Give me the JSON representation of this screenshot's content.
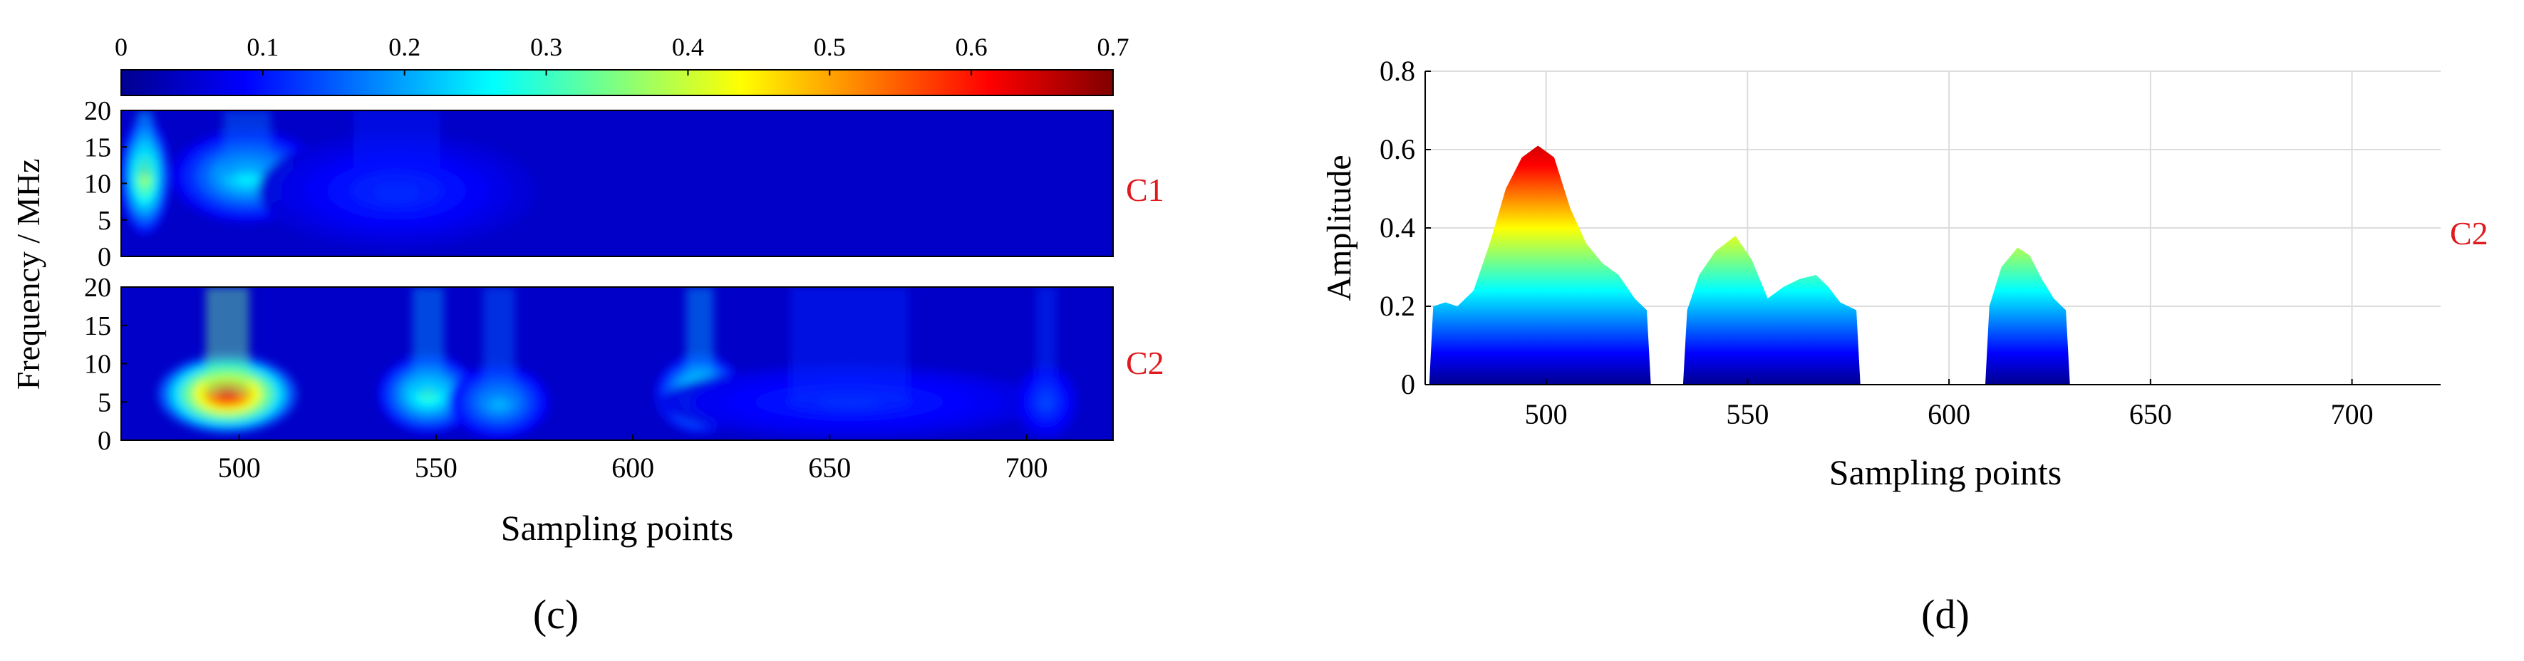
{
  "chart_data": [
    {
      "type": "heatmap",
      "panel_label": "(c)",
      "xlabel": "Sampling points",
      "ylabel": "Frequency / MHz",
      "xlim": [
        470,
        722
      ],
      "ylim": [
        0,
        20
      ],
      "x_ticks": [
        500,
        550,
        600,
        650,
        700
      ],
      "y_ticks": [
        0,
        5,
        10,
        15,
        20
      ],
      "colorbar": {
        "range": [
          0,
          0.7
        ],
        "ticks": [
          "0",
          "0.1",
          "0.2",
          "0.3",
          "0.4",
          "0.5",
          "0.6",
          "0.7"
        ],
        "colormap": "jet",
        "location": "top"
      },
      "rows": [
        {
          "name": "C1",
          "blobs": [
            {
              "x": 476,
              "f": 11,
              "sx": 4,
              "sf": 5,
              "amp": 0.38
            },
            {
              "x": 502,
              "f": 11,
              "sx": 12,
              "sf": 4,
              "amp": 0.26
            },
            {
              "x": 540,
              "f": 9,
              "sx": 22,
              "sf": 5,
              "amp": 0.12
            }
          ],
          "background": 0.05
        },
        {
          "name": "C2",
          "blobs": [
            {
              "x": 497,
              "f": 6,
              "sx": 11,
              "sf": 3.2,
              "amp": 0.62
            },
            {
              "x": 548,
              "f": 6,
              "sx": 8,
              "sf": 3.2,
              "amp": 0.3
            },
            {
              "x": 566,
              "f": 5,
              "sx": 8,
              "sf": 3,
              "amp": 0.22
            },
            {
              "x": 617,
              "f": 6,
              "sx": 7,
              "sf": 3.2,
              "amp": 0.32
            },
            {
              "x": 655,
              "f": 5,
              "sx": 30,
              "sf": 3,
              "amp": 0.12
            },
            {
              "x": 705,
              "f": 5,
              "sx": 5,
              "sf": 3,
              "amp": 0.14
            }
          ],
          "background": 0.06
        }
      ]
    },
    {
      "type": "area",
      "panel_label": "(d)",
      "series_label": "C2",
      "xlabel": "Sampling points",
      "ylabel": "Amplitude",
      "xlim": [
        470,
        722
      ],
      "ylim": [
        0,
        0.8
      ],
      "x_ticks": [
        500,
        550,
        600,
        650,
        700
      ],
      "y_ticks": [
        "0",
        "0.2",
        "0.4",
        "0.6",
        "0.8"
      ],
      "grid": true,
      "colormap": "jet",
      "segments": [
        {
          "x": [
            471,
            472,
            475,
            478,
            482,
            486,
            490,
            494,
            498,
            502,
            506,
            510,
            514,
            518,
            522,
            525,
            526
          ],
          "y": [
            0,
            0.2,
            0.21,
            0.2,
            0.24,
            0.36,
            0.5,
            0.58,
            0.61,
            0.58,
            0.45,
            0.36,
            0.31,
            0.28,
            0.22,
            0.19,
            0
          ]
        },
        {
          "x": [
            534,
            535,
            538,
            542,
            547,
            551,
            555,
            559,
            563,
            567,
            570,
            573,
            577,
            578
          ],
          "y": [
            0,
            0.19,
            0.28,
            0.34,
            0.38,
            0.32,
            0.22,
            0.25,
            0.27,
            0.28,
            0.25,
            0.21,
            0.19,
            0
          ]
        },
        {
          "x": [
            609,
            610,
            613,
            617,
            620,
            623,
            626,
            629,
            630
          ],
          "y": [
            0,
            0.2,
            0.3,
            0.35,
            0.33,
            0.27,
            0.22,
            0.19,
            0
          ]
        }
      ]
    }
  ]
}
